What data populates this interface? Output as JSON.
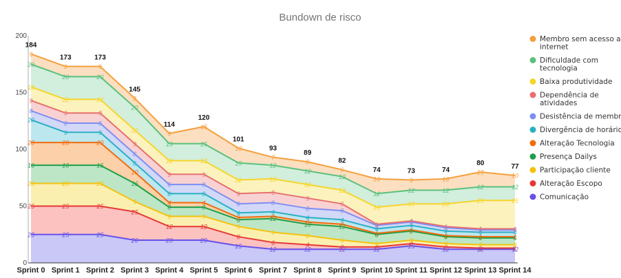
{
  "chart_data": {
    "type": "area",
    "stacked": true,
    "title": "Bundown de risco",
    "xlabel": "",
    "ylabel": "",
    "ylim": [
      0,
      200
    ],
    "yticks": [
      "0",
      "50",
      "100",
      "150",
      "200"
    ],
    "grid": false,
    "legend_position": "right",
    "categories": [
      "Sprint 0",
      "Sprint 1",
      "Sprint 2",
      "Sprint 3",
      "Sprint 4",
      "Sprint 5",
      "Sprint 6",
      "Sprint 7",
      "Sprint 8",
      "Sprint 9",
      "Sprint 10",
      "Sprint 11",
      "Sprint 12",
      "Sprint 13",
      "Sprint 14"
    ],
    "totals": [
      184,
      173,
      173,
      145,
      114,
      120,
      101,
      93,
      89,
      82,
      74,
      73,
      74,
      80,
      77
    ],
    "series": [
      {
        "name": "Comunicação",
        "color": "#6750e8",
        "fill": "#c9c8f7",
        "values": [
          25,
          25,
          25,
          20,
          20,
          20,
          15,
          12,
          12,
          12,
          12,
          15,
          12,
          12,
          12
        ]
      },
      {
        "name": "Alteração Escopo",
        "color": "#e53935",
        "fill": "#fbc2c0",
        "values": [
          25,
          25,
          25,
          25,
          12,
          12,
          8,
          6,
          4,
          2,
          2,
          2,
          2,
          1,
          1
        ]
      },
      {
        "name": "Participação cliente",
        "color": "#f4c20d",
        "fill": "#fbefb0",
        "values": [
          20,
          20,
          20,
          9,
          9,
          9,
          9,
          9,
          8,
          6,
          3,
          3,
          3,
          3,
          3
        ]
      },
      {
        "name": "Presença Dailys",
        "color": "#1e9e4a",
        "fill": "#bde6c6",
        "values": [
          16,
          16,
          16,
          16,
          8,
          8,
          6,
          12,
          10,
          12,
          8,
          8,
          6,
          6,
          6
        ]
      },
      {
        "name": "Alteração Tecnologia",
        "color": "#f26b0c",
        "fill": "#fcd0a8",
        "values": [
          20,
          20,
          20,
          10,
          4,
          4,
          2,
          2,
          2,
          2,
          1,
          1,
          1,
          1,
          1
        ]
      },
      {
        "name": "Divergência de horários",
        "color": "#2ab0c4",
        "fill": "#bde7ee",
        "values": [
          20,
          9,
          9,
          8,
          8,
          8,
          4,
          4,
          4,
          4,
          4,
          4,
          4,
          4,
          4
        ]
      },
      {
        "name": "Desistência de membro",
        "color": "#7e8ef2",
        "fill": "#d3d8f8",
        "values": [
          8,
          8,
          8,
          8,
          8,
          8,
          8,
          8,
          8,
          8,
          3,
          3,
          3,
          2,
          2
        ]
      },
      {
        "name": "Dependência de atividades",
        "color": "#e86f6f",
        "fill": "#f8d2d2",
        "values": [
          9,
          9,
          9,
          9,
          9,
          9,
          9,
          9,
          9,
          6,
          1,
          1,
          1,
          1,
          1
        ]
      },
      {
        "name": "Baixa produtividade",
        "color": "#f6d52c",
        "fill": "#fbf2bd",
        "values": [
          12,
          12,
          12,
          12,
          12,
          12,
          12,
          12,
          12,
          12,
          15,
          15,
          20,
          25,
          25
        ]
      },
      {
        "name": "Dificuldade com tecnologia",
        "color": "#5bc07e",
        "fill": "#d2eedc",
        "values": [
          20,
          20,
          20,
          20,
          15,
          15,
          15,
          12,
          12,
          12,
          12,
          12,
          12,
          12,
          12
        ]
      },
      {
        "name": "Membro sem acesso a internet",
        "color": "#f59f3d",
        "fill": "#fbdfc0",
        "values": [
          9,
          9,
          9,
          8,
          9,
          15,
          13,
          7,
          8,
          6,
          13,
          9,
          10,
          13,
          10
        ]
      }
    ],
    "legend": [
      "Membro sem acesso a internet",
      "Dificuldade com tecnologia",
      "Baixa produtividade",
      "Dependência de atividades",
      "Desistência de membro",
      "Divergência de horários",
      "Alteração Tecnologia",
      "Presença Dailys",
      "Participação cliente",
      "Alteração Escopo",
      "Comunicação"
    ]
  }
}
